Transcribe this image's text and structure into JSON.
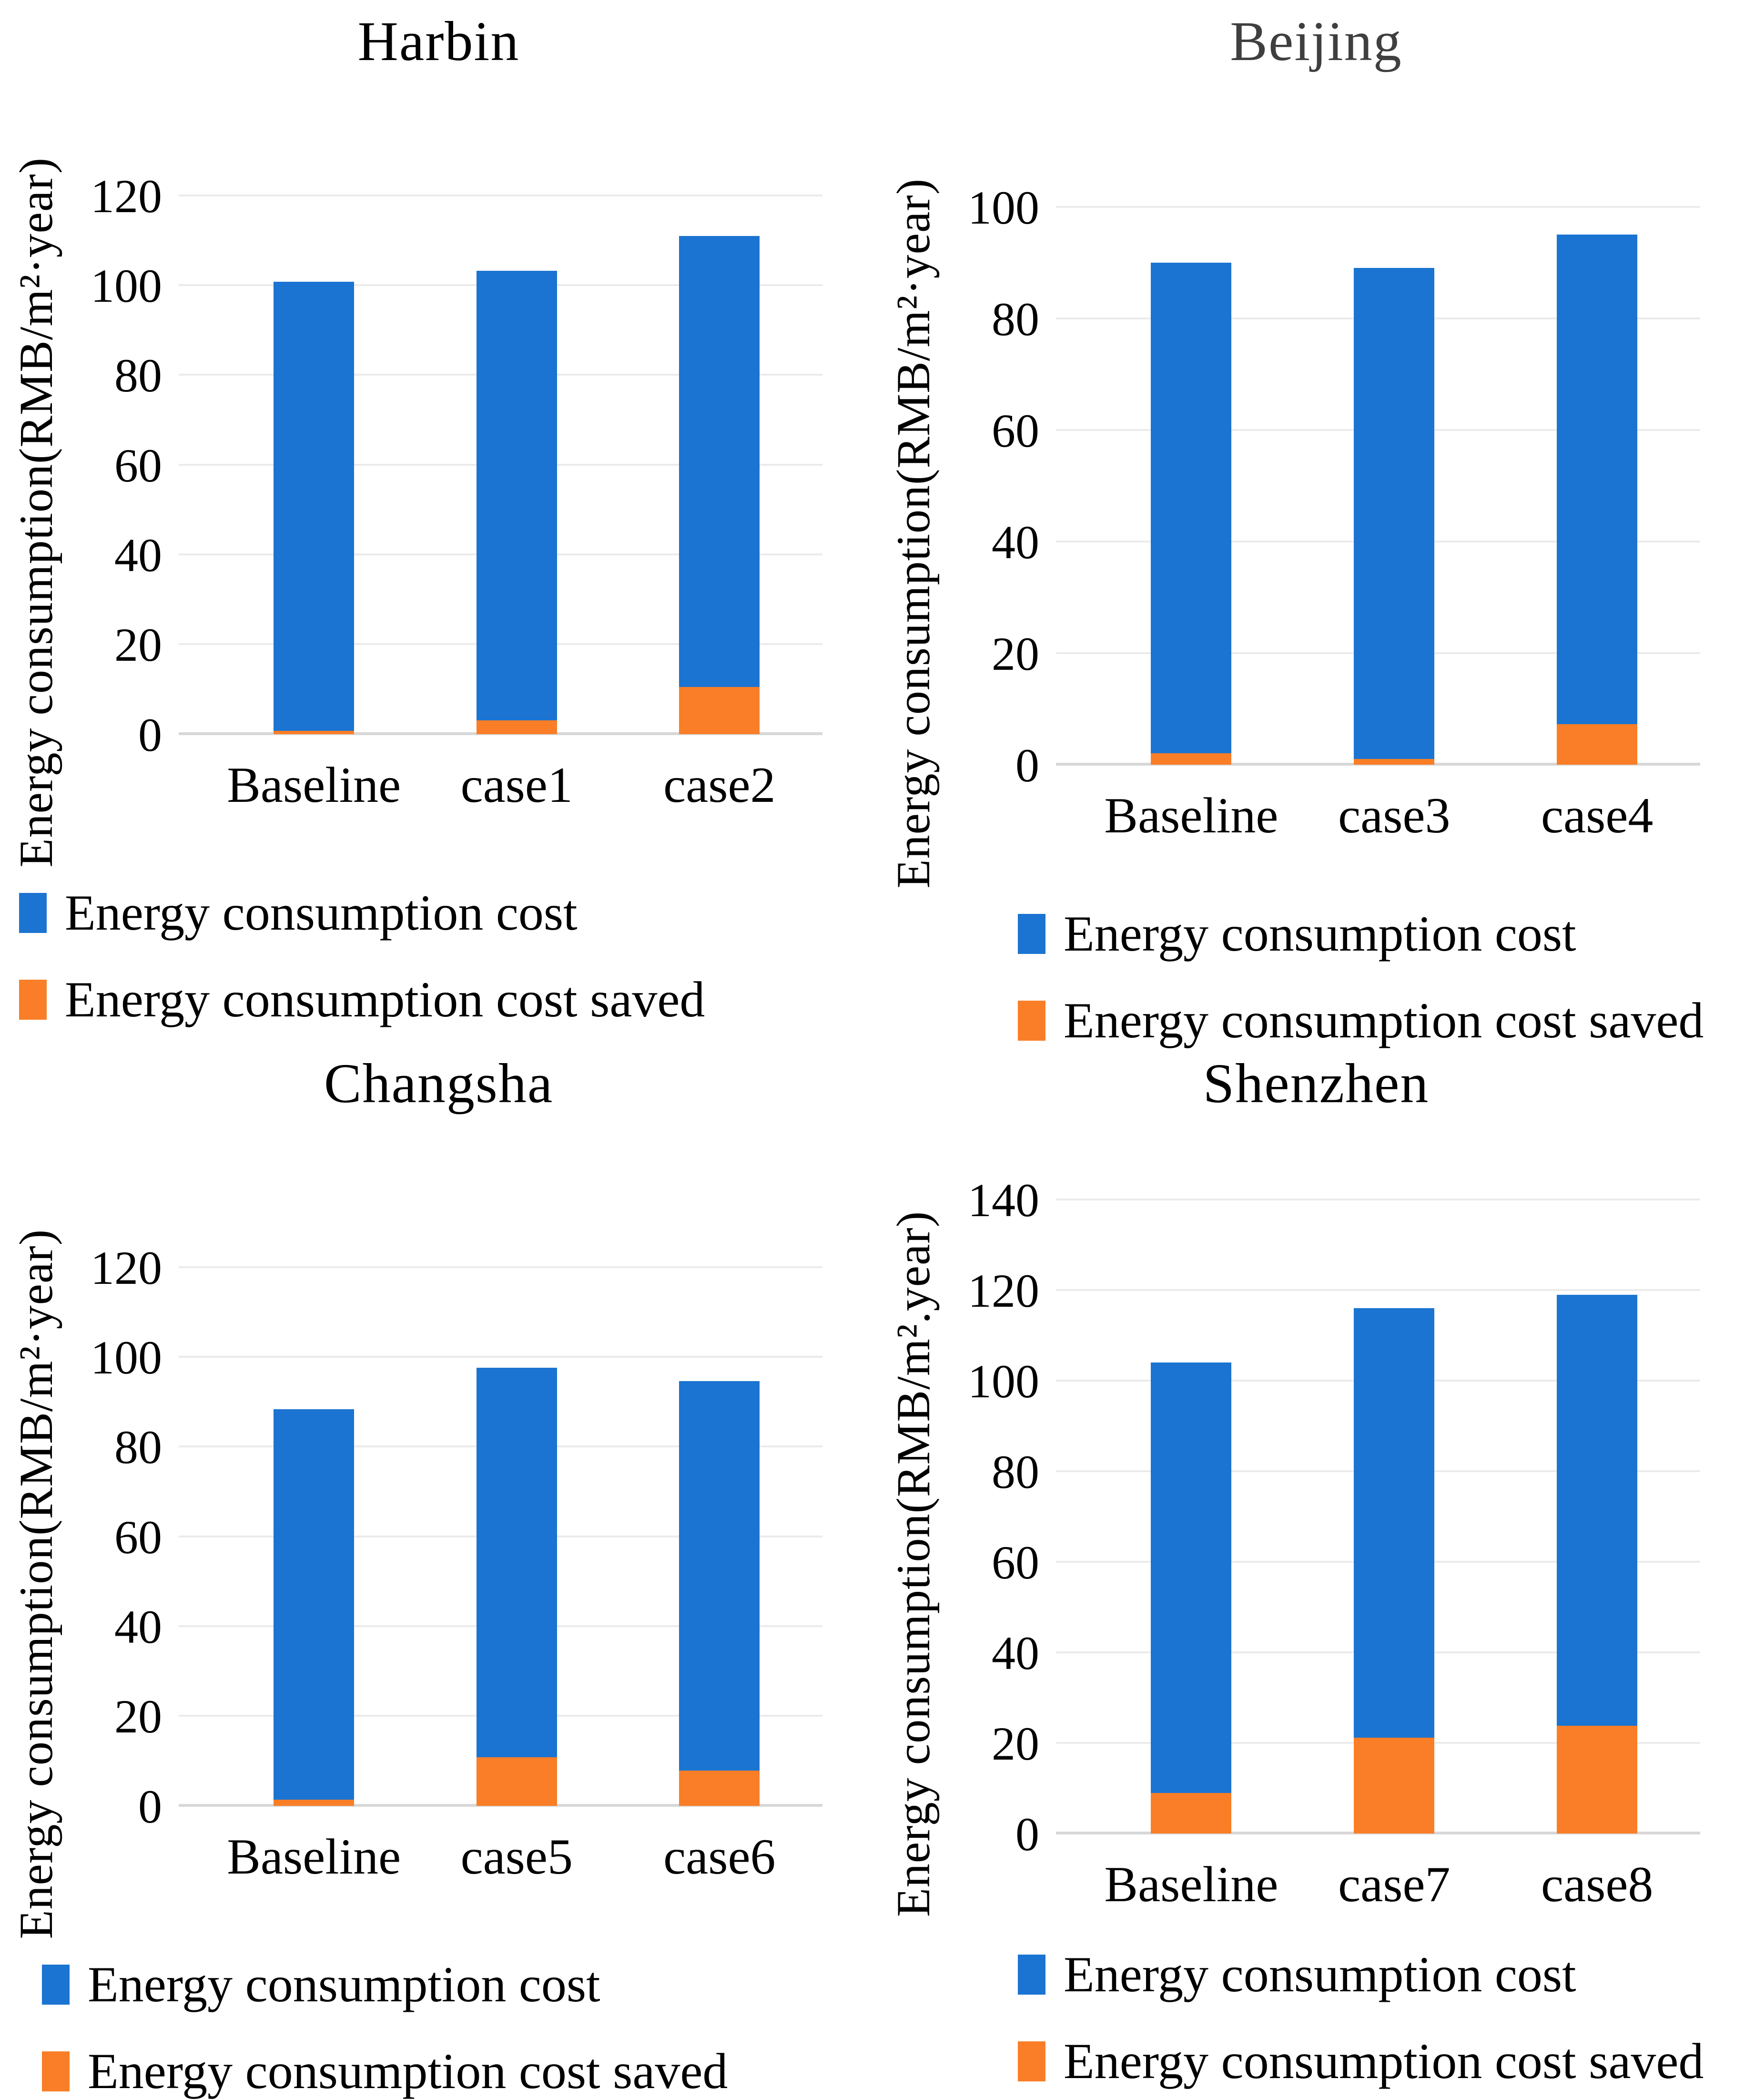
{
  "page": {
    "background": "#ffffff"
  },
  "colors": {
    "cost_blue": "#1B74D1",
    "saved_orange": "#F97E27",
    "gridline": "#EBEBEB",
    "axis_line": "#D8D8D8"
  },
  "chart_data": [
    {
      "type": "bar",
      "stacked": true,
      "grid": true,
      "legend_position": "bottom-left",
      "title": "Harbin",
      "title_color": "#000000",
      "ylabel": "Energy consumption(RMB/m²·year)",
      "xlabel": "",
      "ylim": [
        0,
        120
      ],
      "ytick_step": 20,
      "yticks": [
        0,
        20,
        40,
        60,
        80,
        100,
        120
      ],
      "categories": [
        "Baseline",
        "case1",
        "case2"
      ],
      "series": [
        {
          "name": "Energy consumption cost",
          "color": "#1B74D1",
          "values": [
            100.1,
            100.2,
            100.4
          ]
        },
        {
          "name": "Energy consumption cost saved",
          "color": "#F97E27",
          "values": [
            0.7,
            3.0,
            10.5
          ]
        }
      ],
      "totals": [
        100.8,
        103.2,
        110.9
      ]
    },
    {
      "type": "bar",
      "stacked": true,
      "grid": true,
      "legend_position": "bottom-left",
      "title": "Beijing",
      "title_color": "#3F3F3F",
      "ylabel": "Energy consumption(RMB/m²·year)",
      "xlabel": "",
      "ylim": [
        0,
        100
      ],
      "ytick_step": 20,
      "yticks": [
        0,
        20,
        40,
        60,
        80,
        100
      ],
      "categories": [
        "Baseline",
        "case3",
        "case4"
      ],
      "series": [
        {
          "name": "Energy consumption cost",
          "color": "#1B74D1",
          "values": [
            88.0,
            88.0,
            87.8
          ]
        },
        {
          "name": "Energy consumption cost saved",
          "color": "#F97E27",
          "values": [
            2.0,
            1.0,
            7.2
          ]
        }
      ],
      "totals": [
        90.0,
        89.0,
        95.0
      ]
    },
    {
      "type": "bar",
      "stacked": true,
      "grid": true,
      "legend_position": "bottom-left",
      "title": "Changsha",
      "title_color": "#000000",
      "ylabel": "Energy consumption(RMB/m²·year)",
      "xlabel": "",
      "ylim": [
        0,
        120
      ],
      "ytick_step": 20,
      "yticks": [
        0,
        20,
        40,
        60,
        80,
        100,
        120
      ],
      "categories": [
        "Baseline",
        "case5",
        "case6"
      ],
      "series": [
        {
          "name": "Energy consumption cost",
          "color": "#1B74D1",
          "values": [
            87.0,
            86.8,
            86.8
          ]
        },
        {
          "name": "Energy consumption cost saved",
          "color": "#F97E27",
          "values": [
            1.3,
            10.8,
            7.8
          ]
        }
      ],
      "totals": [
        88.3,
        97.6,
        94.6
      ]
    },
    {
      "type": "bar",
      "stacked": true,
      "grid": true,
      "legend_position": "bottom-left",
      "title": "Shenzhen",
      "title_color": "#000000",
      "ylabel": "Energy consumption(RMB/m².year)",
      "xlabel": "",
      "ylim": [
        0,
        140
      ],
      "ytick_step": 20,
      "yticks": [
        0,
        20,
        40,
        60,
        80,
        100,
        120,
        140
      ],
      "categories": [
        "Baseline",
        "case7",
        "case8"
      ],
      "series": [
        {
          "name": "Energy consumption cost",
          "color": "#1B74D1",
          "values": [
            95.1,
            94.8,
            95.2
          ]
        },
        {
          "name": "Energy consumption cost saved",
          "color": "#F97E27",
          "values": [
            8.9,
            21.2,
            23.8
          ]
        }
      ],
      "totals": [
        104.0,
        116.0,
        119.0
      ]
    }
  ]
}
